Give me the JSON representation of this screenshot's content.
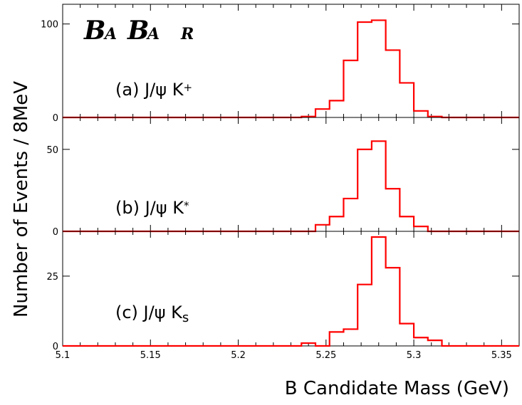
{
  "logo": {
    "b1": "B",
    "a1": "A",
    "b2": "B",
    "a2": "A",
    "r": "R"
  },
  "chart_data": {
    "type": "bar",
    "style": "step-histogram",
    "line_color": "#ff0000",
    "xlabel": "B Candidate Mass (GeV)",
    "ylabel": "Number of Events / 8MeV",
    "xlim": [
      5.1,
      5.36
    ],
    "x_ticks": [
      "5.1",
      "5.15",
      "5.2",
      "5.25",
      "5.3",
      "5.35"
    ],
    "bin_edges": [
      5.236,
      5.244,
      5.252,
      5.26,
      5.268,
      5.276,
      5.284,
      5.292,
      5.3,
      5.308,
      5.316
    ],
    "panels": [
      {
        "label_main": "(a) J/ψ K",
        "label_sup": "+",
        "label_sub": "",
        "ylim": [
          0,
          115
        ],
        "y_ticks": [
          0,
          100
        ],
        "values": [
          1,
          9,
          18,
          61,
          102,
          104,
          72,
          37,
          7,
          1
        ]
      },
      {
        "label_main": "(b) J/ψ K",
        "label_sup": "*",
        "label_sub": "",
        "ylim": [
          0,
          66
        ],
        "y_ticks": [
          0,
          50
        ],
        "values": [
          0,
          4,
          9,
          20,
          50,
          55,
          26,
          9,
          3,
          0
        ]
      },
      {
        "label_main": "(c) J/ψ K",
        "label_sup": "",
        "label_sub": "s",
        "ylim": [
          0,
          39
        ],
        "y_ticks": [
          0,
          25
        ],
        "values": [
          1,
          0,
          5,
          6,
          22,
          39,
          28,
          8,
          3,
          2
        ]
      }
    ]
  }
}
